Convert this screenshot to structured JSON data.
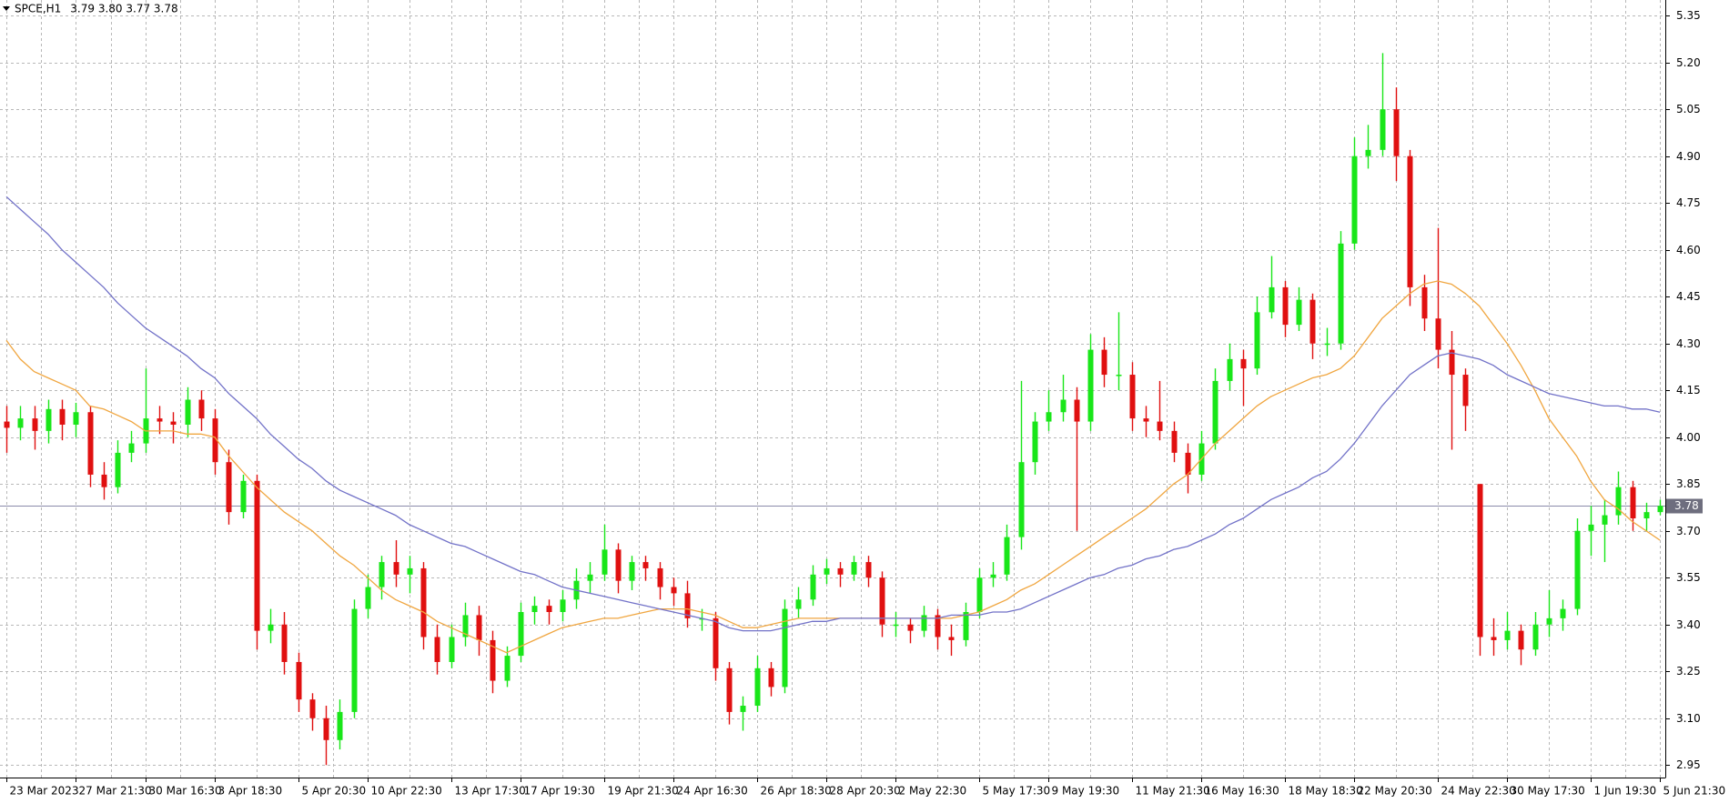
{
  "chart_data": {
    "type": "candlestick",
    "title": "SPCE,H1",
    "subtitle": "3.79 3.80 3.77 3.78",
    "up_color": "#19e619",
    "down_color": "#e01010",
    "grid": true,
    "ylim": [
      2.91,
      5.4
    ],
    "yticks": [
      2.95,
      {
        "value": 3.1,
        "label": "3.10"
      },
      3.25,
      {
        "value": 3.4,
        "label": "3.40"
      },
      3.55,
      {
        "value": 3.7,
        "label": "3.70"
      },
      3.85,
      {
        "value": 4.0,
        "label": "4.00"
      },
      4.15,
      {
        "value": 4.3,
        "label": "4.30"
      },
      4.45,
      {
        "value": 4.6,
        "label": "4.60"
      },
      4.75,
      {
        "value": 4.9,
        "label": "4.90"
      },
      5.05,
      {
        "value": 5.2,
        "label": "5.20"
      },
      5.35
    ],
    "current_price": 3.78,
    "current_price_color": "#8a8aaa",
    "categories": [
      "23 Mar 2023",
      null,
      null,
      null,
      null,
      "27 Mar 21:30",
      null,
      null,
      null,
      null,
      "30 Mar 16:30",
      null,
      null,
      null,
      null,
      "3 Apr 18:30",
      null,
      null,
      null,
      null,
      null,
      "5 Apr 20:30",
      null,
      null,
      null,
      null,
      "10 Apr 22:30",
      null,
      null,
      null,
      null,
      null,
      "13 Apr 17:30",
      null,
      null,
      null,
      null,
      "17 Apr 19:30",
      null,
      null,
      null,
      null,
      null,
      "19 Apr 21:30",
      null,
      null,
      null,
      null,
      "24 Apr 16:30",
      null,
      null,
      null,
      null,
      null,
      "26 Apr 18:30",
      null,
      null,
      null,
      null,
      "28 Apr 20:30",
      null,
      null,
      null,
      null,
      "2 May 22:30",
      null,
      null,
      null,
      null,
      null,
      "5 May 17:30",
      null,
      null,
      null,
      null,
      "9 May 19:30",
      null,
      null,
      null,
      null,
      null,
      "11 May 21:30",
      null,
      null,
      null,
      null,
      "16 May 16:30",
      null,
      null,
      null,
      null,
      null,
      "18 May 18:30",
      null,
      null,
      null,
      null,
      "22 May 20:30",
      null,
      null,
      null,
      null,
      null,
      "24 May 22:30",
      null,
      null,
      null,
      null,
      "30 May 17:30",
      null,
      null,
      null,
      null,
      null,
      "1 Jun 19:30",
      null,
      null,
      null,
      null,
      "5 Jun 21:30"
    ],
    "ohlc": [
      [
        4.05,
        4.1,
        3.95,
        4.03
      ],
      [
        4.03,
        4.1,
        3.99,
        4.06
      ],
      [
        4.06,
        4.1,
        3.96,
        4.02
      ],
      [
        4.02,
        4.12,
        3.98,
        4.09
      ],
      [
        4.09,
        4.12,
        3.99,
        4.04
      ],
      [
        4.04,
        4.11,
        4.0,
        4.08
      ],
      [
        4.08,
        4.1,
        3.84,
        3.88
      ],
      [
        3.88,
        3.92,
        3.8,
        3.84
      ],
      [
        3.84,
        3.99,
        3.82,
        3.95
      ],
      [
        3.95,
        4.02,
        3.92,
        3.98
      ],
      [
        3.98,
        4.22,
        3.95,
        4.06
      ],
      [
        4.06,
        4.1,
        4.01,
        4.05
      ],
      [
        4.05,
        4.08,
        3.98,
        4.04
      ],
      [
        4.04,
        4.16,
        4.0,
        4.12
      ],
      [
        4.12,
        4.15,
        4.02,
        4.06
      ],
      [
        4.06,
        4.09,
        3.88,
        3.92
      ],
      [
        3.92,
        3.96,
        3.72,
        3.76
      ],
      [
        3.76,
        3.88,
        3.74,
        3.86
      ],
      [
        3.86,
        3.88,
        3.32,
        3.38
      ],
      [
        3.38,
        3.45,
        3.34,
        3.4
      ],
      [
        3.4,
        3.44,
        3.24,
        3.28
      ],
      [
        3.28,
        3.31,
        3.12,
        3.16
      ],
      [
        3.16,
        3.18,
        3.06,
        3.1
      ],
      [
        3.1,
        3.14,
        2.95,
        3.03
      ],
      [
        3.03,
        3.16,
        3.0,
        3.12
      ],
      [
        3.12,
        3.48,
        3.1,
        3.45
      ],
      [
        3.45,
        3.56,
        3.42,
        3.52
      ],
      [
        3.52,
        3.62,
        3.48,
        3.6
      ],
      [
        3.6,
        3.67,
        3.52,
        3.56
      ],
      [
        3.56,
        3.62,
        3.5,
        3.58
      ],
      [
        3.58,
        3.6,
        3.32,
        3.36
      ],
      [
        3.36,
        3.4,
        3.24,
        3.28
      ],
      [
        3.28,
        3.4,
        3.26,
        3.36
      ],
      [
        3.36,
        3.47,
        3.33,
        3.43
      ],
      [
        3.43,
        3.46,
        3.3,
        3.35
      ],
      [
        3.35,
        3.38,
        3.18,
        3.22
      ],
      [
        3.22,
        3.33,
        3.2,
        3.3
      ],
      [
        3.3,
        3.47,
        3.28,
        3.44
      ],
      [
        3.44,
        3.49,
        3.4,
        3.46
      ],
      [
        3.46,
        3.48,
        3.4,
        3.44
      ],
      [
        3.44,
        3.51,
        3.41,
        3.48
      ],
      [
        3.48,
        3.58,
        3.45,
        3.54
      ],
      [
        3.54,
        3.6,
        3.5,
        3.56
      ],
      [
        3.56,
        3.72,
        3.54,
        3.64
      ],
      [
        3.64,
        3.66,
        3.5,
        3.54
      ],
      [
        3.54,
        3.62,
        3.51,
        3.6
      ],
      [
        3.6,
        3.62,
        3.54,
        3.58
      ],
      [
        3.58,
        3.6,
        3.48,
        3.52
      ],
      [
        3.52,
        3.55,
        3.46,
        3.5
      ],
      [
        3.5,
        3.54,
        3.39,
        3.42
      ],
      [
        3.42,
        3.45,
        3.38,
        3.42
      ],
      [
        3.42,
        3.44,
        3.22,
        3.26
      ],
      [
        3.26,
        3.28,
        3.08,
        3.12
      ],
      [
        3.12,
        3.17,
        3.06,
        3.14
      ],
      [
        3.14,
        3.3,
        3.12,
        3.26
      ],
      [
        3.26,
        3.28,
        3.17,
        3.2
      ],
      [
        3.2,
        3.48,
        3.18,
        3.45
      ],
      [
        3.45,
        3.52,
        3.42,
        3.48
      ],
      [
        3.48,
        3.59,
        3.46,
        3.56
      ],
      [
        3.56,
        3.61,
        3.53,
        3.58
      ],
      [
        3.58,
        3.6,
        3.52,
        3.56
      ],
      [
        3.56,
        3.62,
        3.54,
        3.6
      ],
      [
        3.6,
        3.62,
        3.52,
        3.55
      ],
      [
        3.55,
        3.57,
        3.36,
        3.4
      ],
      [
        3.4,
        3.44,
        3.36,
        3.4
      ],
      [
        3.4,
        3.42,
        3.34,
        3.38
      ],
      [
        3.38,
        3.46,
        3.36,
        3.43
      ],
      [
        3.43,
        3.45,
        3.32,
        3.36
      ],
      [
        3.36,
        3.4,
        3.3,
        3.35
      ],
      [
        3.35,
        3.47,
        3.33,
        3.44
      ],
      [
        3.44,
        3.58,
        3.42,
        3.55
      ],
      [
        3.55,
        3.6,
        3.52,
        3.56
      ],
      [
        3.56,
        3.72,
        3.54,
        3.68
      ],
      [
        3.68,
        4.18,
        3.64,
        3.92
      ],
      [
        3.92,
        4.08,
        3.88,
        4.05
      ],
      [
        4.05,
        4.15,
        4.02,
        4.08
      ],
      [
        4.08,
        4.2,
        4.05,
        4.12
      ],
      [
        4.12,
        4.16,
        3.7,
        4.05
      ],
      [
        4.05,
        4.33,
        4.02,
        4.28
      ],
      [
        4.28,
        4.32,
        4.16,
        4.2
      ],
      [
        4.2,
        4.4,
        4.15,
        4.2
      ],
      [
        4.2,
        4.24,
        4.02,
        4.06
      ],
      [
        4.06,
        4.1,
        4.0,
        4.05
      ],
      [
        4.05,
        4.18,
        3.99,
        4.02
      ],
      [
        4.02,
        4.05,
        3.92,
        3.95
      ],
      [
        3.95,
        3.98,
        3.82,
        3.88
      ],
      [
        3.88,
        4.02,
        3.86,
        3.98
      ],
      [
        3.98,
        4.22,
        3.96,
        4.18
      ],
      [
        4.18,
        4.3,
        4.15,
        4.25
      ],
      [
        4.25,
        4.28,
        4.1,
        4.22
      ],
      [
        4.22,
        4.45,
        4.2,
        4.4
      ],
      [
        4.4,
        4.58,
        4.38,
        4.48
      ],
      [
        4.48,
        4.5,
        4.32,
        4.36
      ],
      [
        4.36,
        4.48,
        4.34,
        4.44
      ],
      [
        4.44,
        4.46,
        4.25,
        4.3
      ],
      [
        4.3,
        4.35,
        4.26,
        4.3
      ],
      [
        4.3,
        4.66,
        4.28,
        4.62
      ],
      [
        4.62,
        4.96,
        4.6,
        4.9
      ],
      [
        4.9,
        5.0,
        4.86,
        4.92
      ],
      [
        4.92,
        5.23,
        4.9,
        5.05
      ],
      [
        5.05,
        5.12,
        4.82,
        4.9
      ],
      [
        4.9,
        4.92,
        4.42,
        4.48
      ],
      [
        4.48,
        4.52,
        4.34,
        4.38
      ],
      [
        4.38,
        4.67,
        4.22,
        4.28
      ],
      [
        4.28,
        4.34,
        3.96,
        4.2
      ],
      [
        4.2,
        4.22,
        4.02,
        4.1
      ],
      [
        3.85,
        3.85,
        3.3,
        3.36
      ],
      [
        3.36,
        3.42,
        3.3,
        3.35
      ],
      [
        3.35,
        3.44,
        3.32,
        3.38
      ],
      [
        3.38,
        3.4,
        3.27,
        3.32
      ],
      [
        3.32,
        3.44,
        3.3,
        3.4
      ],
      [
        3.4,
        3.51,
        3.36,
        3.42
      ],
      [
        3.42,
        3.48,
        3.38,
        3.45
      ],
      [
        3.45,
        3.74,
        3.43,
        3.7
      ],
      [
        3.7,
        3.78,
        3.62,
        3.72
      ],
      [
        3.72,
        3.8,
        3.6,
        3.75
      ],
      [
        3.75,
        3.89,
        3.72,
        3.84
      ],
      [
        3.84,
        3.86,
        3.7,
        3.74
      ],
      [
        3.74,
        3.79,
        3.7,
        3.76
      ],
      [
        3.76,
        3.8,
        3.75,
        3.78
      ]
    ],
    "series": [
      {
        "color": "#f0a640",
        "values": [
          4.31,
          4.25,
          4.21,
          4.19,
          4.17,
          4.15,
          4.1,
          4.09,
          4.07,
          4.05,
          4.02,
          4.02,
          4.02,
          4.01,
          4.01,
          4.0,
          3.94,
          3.89,
          3.84,
          3.8,
          3.76,
          3.73,
          3.7,
          3.66,
          3.62,
          3.59,
          3.55,
          3.51,
          3.48,
          3.46,
          3.44,
          3.41,
          3.39,
          3.37,
          3.35,
          3.33,
          3.31,
          3.33,
          3.35,
          3.37,
          3.39,
          3.4,
          3.41,
          3.42,
          3.42,
          3.43,
          3.44,
          3.45,
          3.45,
          3.45,
          3.44,
          3.43,
          3.41,
          3.39,
          3.39,
          3.4,
          3.41,
          3.42,
          3.42,
          3.42,
          3.42,
          3.42,
          3.42,
          3.42,
          3.42,
          3.42,
          3.42,
          3.42,
          3.42,
          3.43,
          3.44,
          3.46,
          3.48,
          3.51,
          3.53,
          3.56,
          3.59,
          3.62,
          3.65,
          3.68,
          3.71,
          3.74,
          3.77,
          3.81,
          3.85,
          3.88,
          3.93,
          3.98,
          4.02,
          4.06,
          4.1,
          4.13,
          4.15,
          4.17,
          4.19,
          4.2,
          4.22,
          4.26,
          4.32,
          4.38,
          4.42,
          4.46,
          4.49,
          4.5,
          4.49,
          4.46,
          4.42,
          4.36,
          4.3,
          4.23,
          4.15,
          4.06,
          4.0,
          3.94,
          3.86,
          3.8,
          3.77,
          3.73,
          3.7,
          3.67
        ]
      },
      {
        "color": "#7272c8",
        "values": [
          4.77,
          4.73,
          4.69,
          4.65,
          4.6,
          4.56,
          4.52,
          4.48,
          4.43,
          4.39,
          4.35,
          4.32,
          4.29,
          4.26,
          4.22,
          4.19,
          4.14,
          4.1,
          4.06,
          4.01,
          3.97,
          3.93,
          3.9,
          3.86,
          3.83,
          3.81,
          3.79,
          3.77,
          3.75,
          3.72,
          3.7,
          3.68,
          3.66,
          3.65,
          3.63,
          3.61,
          3.59,
          3.57,
          3.56,
          3.54,
          3.52,
          3.51,
          3.5,
          3.49,
          3.48,
          3.47,
          3.46,
          3.45,
          3.44,
          3.43,
          3.42,
          3.41,
          3.39,
          3.38,
          3.38,
          3.38,
          3.39,
          3.4,
          3.41,
          3.41,
          3.42,
          3.42,
          3.42,
          3.42,
          3.42,
          3.42,
          3.42,
          3.42,
          3.43,
          3.43,
          3.43,
          3.44,
          3.44,
          3.45,
          3.47,
          3.49,
          3.51,
          3.53,
          3.55,
          3.56,
          3.58,
          3.59,
          3.61,
          3.62,
          3.64,
          3.65,
          3.67,
          3.69,
          3.72,
          3.74,
          3.77,
          3.8,
          3.82,
          3.84,
          3.87,
          3.89,
          3.93,
          3.98,
          4.04,
          4.1,
          4.15,
          4.2,
          4.23,
          4.26,
          4.27,
          4.26,
          4.25,
          4.23,
          4.2,
          4.18,
          4.16,
          4.14,
          4.13,
          4.12,
          4.11,
          4.1,
          4.1,
          4.09,
          4.09,
          4.08
        ]
      }
    ]
  }
}
